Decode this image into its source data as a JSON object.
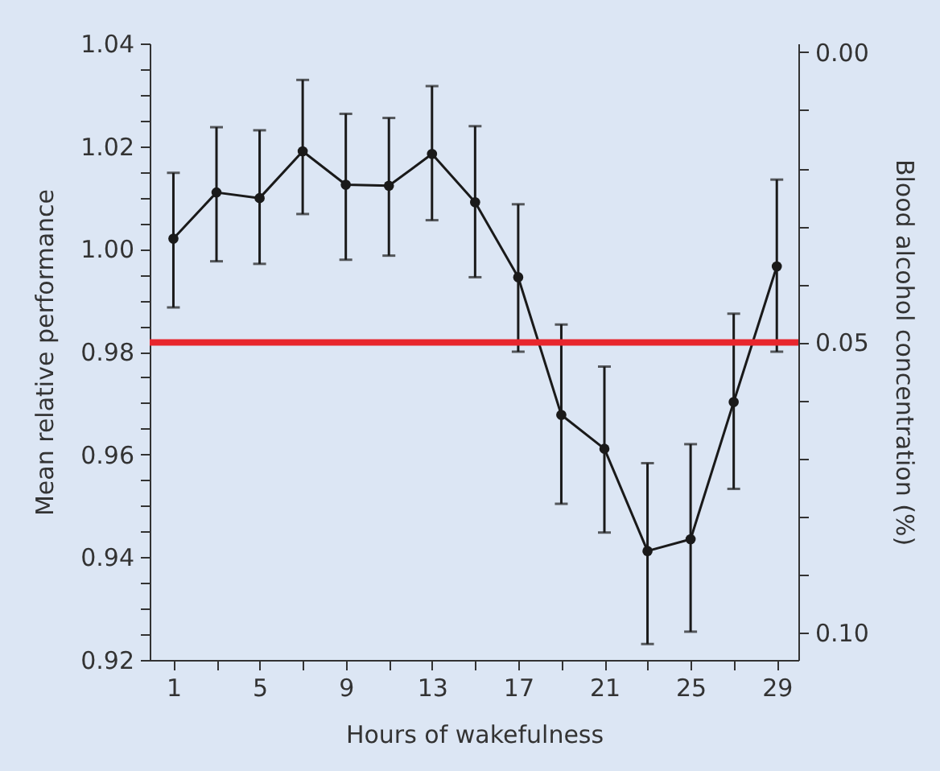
{
  "chart_data": {
    "type": "line",
    "xlabel": "Hours of wakefulness",
    "ylabel": "Mean relative performance",
    "y2label": "Blood alcohol concentration (%)",
    "x": [
      1,
      3,
      5,
      7,
      9,
      11,
      13,
      15,
      17,
      19,
      21,
      23,
      25,
      27,
      29
    ],
    "series": [
      {
        "color": "#1a1a1a",
        "values": [
          1.002,
          1.011,
          1.0099,
          1.019,
          1.0125,
          1.0123,
          1.0185,
          1.0091,
          0.9945,
          0.9677,
          0.9611,
          0.9412,
          0.9435,
          0.9702,
          0.9966
        ],
        "errors": [
          [
            0.9886,
            1.0148
          ],
          [
            0.9976,
            1.0237
          ],
          [
            0.9971,
            1.0231
          ],
          [
            1.0068,
            1.0329
          ],
          [
            0.9979,
            1.0263
          ],
          [
            0.9987,
            1.0255
          ],
          [
            1.0056,
            1.0317
          ],
          [
            0.9945,
            1.0239
          ],
          [
            0.98,
            1.0087
          ],
          [
            0.9504,
            0.9853
          ],
          [
            0.9448,
            0.9771
          ],
          [
            0.9231,
            0.9583
          ],
          [
            0.9255,
            0.962
          ],
          [
            0.9533,
            0.9874
          ],
          [
            0.98,
            1.0135
          ]
        ]
      }
    ],
    "xlim": [
      -0.1,
      30
    ],
    "xticks": [
      1,
      {
        "value": 3,
        "label": null
      },
      5,
      {
        "value": 7,
        "label": null
      },
      9,
      {
        "value": 11,
        "label": null
      },
      13,
      {
        "value": 15,
        "label": null
      },
      17,
      {
        "value": 19,
        "label": null
      },
      21,
      {
        "value": 23,
        "label": null
      },
      25,
      {
        "value": 27,
        "label": null
      },
      29
    ],
    "ylim": [
      0.92,
      1.04
    ],
    "yticks": [
      {
        "value": 0.92,
        "label": "0.92"
      },
      {
        "value": 0.925,
        "label": null
      },
      {
        "value": 0.93,
        "label": null
      },
      {
        "value": 0.935,
        "label": null
      },
      {
        "value": 0.94,
        "label": "0.94"
      },
      {
        "value": 0.945,
        "label": null
      },
      {
        "value": 0.95,
        "label": null
      },
      {
        "value": 0.955,
        "label": null
      },
      {
        "value": 0.96,
        "label": "0.96"
      },
      {
        "value": 0.965,
        "label": null
      },
      {
        "value": 0.97,
        "label": null
      },
      {
        "value": 0.975,
        "label": null
      },
      {
        "value": 0.98,
        "label": "0.98"
      },
      {
        "value": 0.985,
        "label": null
      },
      {
        "value": 0.99,
        "label": null
      },
      {
        "value": 0.995,
        "label": null
      },
      {
        "value": 1.0,
        "label": "1.00"
      },
      {
        "value": 1.005,
        "label": null
      },
      {
        "value": 1.01,
        "label": null
      },
      {
        "value": 1.015,
        "label": null
      },
      {
        "value": 1.02,
        "label": "1.02"
      },
      {
        "value": 1.025,
        "label": null
      },
      {
        "value": 1.03,
        "label": null
      },
      {
        "value": 1.035,
        "label": null
      },
      {
        "value": 1.04,
        "label": "1.04"
      }
    ],
    "y2lim": [
      0.1047,
      -0.0015
    ],
    "y2ticks": [
      {
        "value": 0.0,
        "label": "0.00"
      },
      {
        "value": 0.01,
        "label": null
      },
      {
        "value": 0.02,
        "label": null
      },
      {
        "value": 0.03,
        "label": null
      },
      {
        "value": 0.04,
        "label": null
      },
      {
        "value": 0.05,
        "label": "0.05"
      },
      {
        "value": 0.06,
        "label": null
      },
      {
        "value": 0.07,
        "label": null
      },
      {
        "value": 0.08,
        "label": null
      },
      {
        "value": 0.09,
        "label": null
      },
      {
        "value": 0.1,
        "label": "0.10"
      }
    ],
    "ref_lines": [
      {
        "axis": "y2",
        "value": 0.05,
        "color": "#e8262d"
      }
    ],
    "marker": "circle",
    "line_style": "solid",
    "grid": false
  }
}
